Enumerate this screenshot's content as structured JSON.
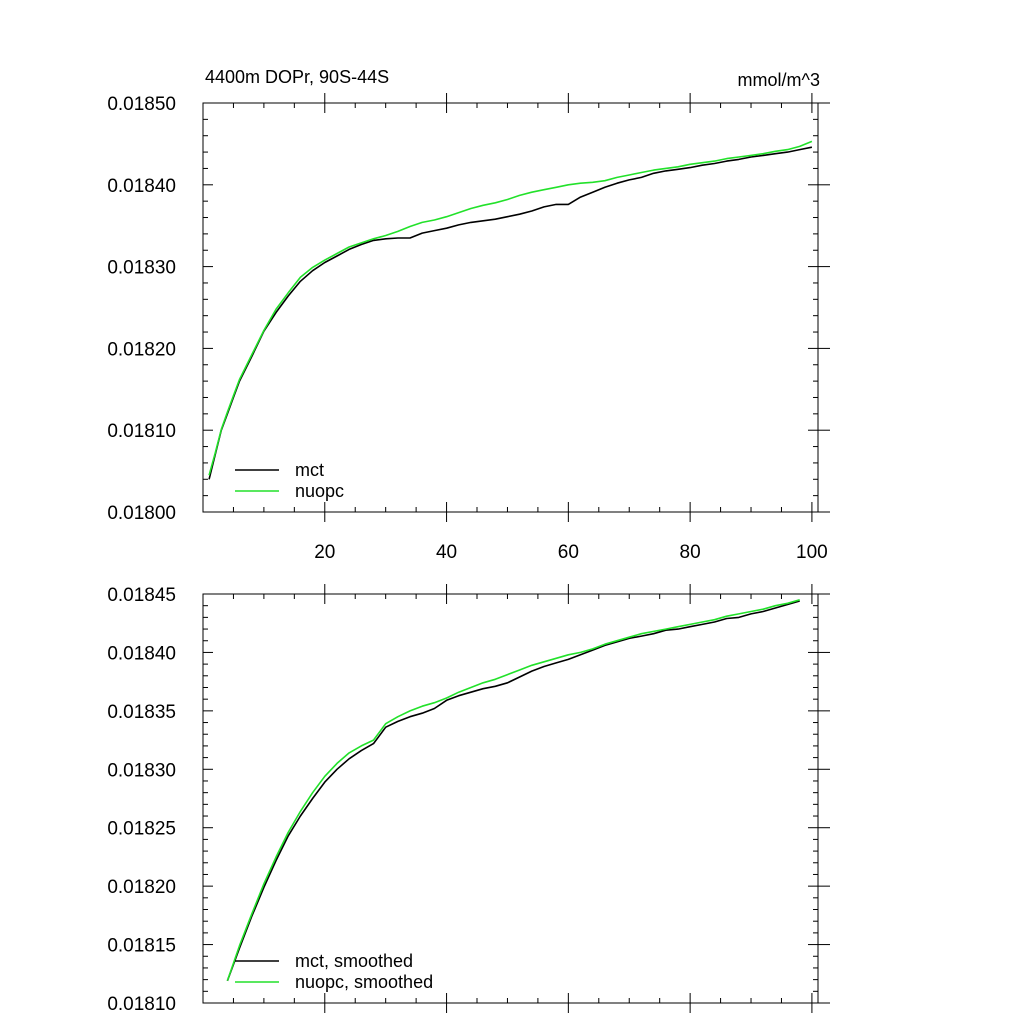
{
  "figure": {
    "title_left": "4400m DOPr, 90S-44S",
    "title_right": "mmol/m^3"
  },
  "chart_data": [
    {
      "type": "line",
      "xlim": [
        0,
        101
      ],
      "ylim": [
        0.018,
        0.0185
      ],
      "x_ticks": [
        20,
        40,
        60,
        80,
        100
      ],
      "x_tick_labels": [
        "20",
        "40",
        "60",
        "80",
        "100"
      ],
      "y_ticks": [
        0.018,
        0.0181,
        0.0182,
        0.0183,
        0.0184,
        0.0185
      ],
      "y_tick_labels": [
        "0.01800",
        "0.01810",
        "0.01820",
        "0.01830",
        "0.01840",
        "0.01850"
      ],
      "legend": {
        "position": "bottom-left",
        "entries": [
          "mct",
          "nuopc"
        ]
      },
      "series": [
        {
          "name": "mct",
          "color": "#000000",
          "x": [
            1,
            2,
            3,
            4,
            5,
            6,
            8,
            10,
            12,
            14,
            16,
            18,
            20,
            22,
            24,
            26,
            28,
            30,
            32,
            34,
            36,
            38,
            40,
            42,
            44,
            46,
            48,
            50,
            52,
            54,
            56,
            58,
            60,
            62,
            64,
            66,
            68,
            70,
            72,
            74,
            76,
            78,
            80,
            82,
            84,
            86,
            88,
            90,
            92,
            94,
            96,
            98,
            100
          ],
          "y": [
            0.01804,
            0.01807,
            0.0181,
            0.01812,
            0.01814,
            0.01816,
            0.01819,
            0.018221,
            0.018244,
            0.018264,
            0.018282,
            0.018295,
            0.018305,
            0.018313,
            0.018321,
            0.018327,
            0.018332,
            0.018334,
            0.018335,
            0.018335,
            0.018341,
            0.018344,
            0.018347,
            0.018351,
            0.018354,
            0.018356,
            0.018358,
            0.018361,
            0.018364,
            0.018368,
            0.018373,
            0.018376,
            0.018376,
            0.018385,
            0.018391,
            0.018397,
            0.018402,
            0.018406,
            0.018409,
            0.018414,
            0.018417,
            0.018419,
            0.018421,
            0.018424,
            0.018426,
            0.018429,
            0.018431,
            0.018434,
            0.018436,
            0.018438,
            0.01844,
            0.018443,
            0.018446
          ]
        },
        {
          "name": "nuopc",
          "color": "#22e12a",
          "x": [
            1,
            2,
            3,
            4,
            5,
            6,
            8,
            10,
            12,
            14,
            16,
            18,
            20,
            22,
            24,
            26,
            28,
            30,
            32,
            34,
            36,
            38,
            40,
            42,
            44,
            46,
            48,
            50,
            52,
            54,
            56,
            58,
            60,
            62,
            64,
            66,
            68,
            70,
            72,
            74,
            76,
            78,
            80,
            82,
            84,
            86,
            88,
            90,
            92,
            94,
            96,
            98,
            100
          ],
          "y": [
            0.018045,
            0.018072,
            0.018101,
            0.018122,
            0.018142,
            0.018162,
            0.018192,
            0.018222,
            0.018248,
            0.018268,
            0.018287,
            0.018299,
            0.018308,
            0.018316,
            0.018324,
            0.018329,
            0.018334,
            0.018338,
            0.018343,
            0.018349,
            0.018354,
            0.018357,
            0.018361,
            0.018366,
            0.018371,
            0.018375,
            0.018378,
            0.018382,
            0.018387,
            0.018391,
            0.018394,
            0.018397,
            0.0184,
            0.018402,
            0.018403,
            0.018405,
            0.018409,
            0.018412,
            0.018415,
            0.018418,
            0.01842,
            0.018422,
            0.018425,
            0.018427,
            0.018429,
            0.018432,
            0.018434,
            0.018436,
            0.018438,
            0.018441,
            0.018443,
            0.018447,
            0.018453
          ]
        }
      ]
    },
    {
      "type": "line",
      "xlim": [
        0,
        101
      ],
      "ylim": [
        0.0181,
        0.01845
      ],
      "x_ticks": [
        20,
        40,
        60,
        80,
        100
      ],
      "x_tick_labels": [],
      "y_ticks": [
        0.0181,
        0.01815,
        0.0182,
        0.01825,
        0.0183,
        0.01835,
        0.0184,
        0.01845
      ],
      "y_tick_labels": [
        "0.01810",
        "0.01815",
        "0.01820",
        "0.01825",
        "0.01830",
        "0.01835",
        "0.01840",
        "0.01845"
      ],
      "legend": {
        "position": "bottom-left",
        "entries": [
          "mct, smoothed",
          "nuopc, smoothed"
        ]
      },
      "series": [
        {
          "name": "mct, smoothed",
          "color": "#000000",
          "x": [
            4,
            6,
            8,
            10,
            12,
            14,
            16,
            18,
            20,
            22,
            24,
            26,
            28,
            30,
            32,
            34,
            36,
            38,
            40,
            42,
            44,
            46,
            48,
            50,
            52,
            54,
            56,
            58,
            60,
            62,
            64,
            66,
            68,
            70,
            72,
            74,
            76,
            78,
            80,
            82,
            84,
            86,
            88,
            90,
            92,
            94,
            96,
            98
          ],
          "y": [
            0.018119,
            0.018147,
            0.018174,
            0.018199,
            0.018222,
            0.018243,
            0.01826,
            0.018275,
            0.018289,
            0.0183,
            0.018309,
            0.018316,
            0.018322,
            0.018336,
            0.018341,
            0.018345,
            0.018348,
            0.018352,
            0.018359,
            0.018363,
            0.018366,
            0.018369,
            0.018371,
            0.018374,
            0.018379,
            0.018384,
            0.018388,
            0.018391,
            0.018394,
            0.018398,
            0.018402,
            0.018406,
            0.018409,
            0.018412,
            0.018414,
            0.018416,
            0.018419,
            0.01842,
            0.018422,
            0.018424,
            0.018426,
            0.018429,
            0.01843,
            0.018433,
            0.018435,
            0.018438,
            0.018441,
            0.018444
          ]
        },
        {
          "name": "nuopc, smoothed",
          "color": "#22e12a",
          "x": [
            4,
            6,
            8,
            10,
            12,
            14,
            16,
            18,
            20,
            22,
            24,
            26,
            28,
            30,
            32,
            34,
            36,
            38,
            40,
            42,
            44,
            46,
            48,
            50,
            52,
            54,
            56,
            58,
            60,
            62,
            64,
            66,
            68,
            70,
            72,
            74,
            76,
            78,
            80,
            82,
            84,
            86,
            88,
            90,
            92,
            94,
            96,
            98
          ],
          "y": [
            0.018119,
            0.018149,
            0.018176,
            0.018202,
            0.018225,
            0.018246,
            0.018264,
            0.01828,
            0.018294,
            0.018305,
            0.018314,
            0.01832,
            0.018325,
            0.018339,
            0.018345,
            0.01835,
            0.018354,
            0.018357,
            0.018361,
            0.018366,
            0.01837,
            0.018374,
            0.018377,
            0.018381,
            0.018385,
            0.018389,
            0.018392,
            0.018395,
            0.018398,
            0.0184,
            0.018403,
            0.018407,
            0.01841,
            0.018413,
            0.018416,
            0.018418,
            0.01842,
            0.018422,
            0.018424,
            0.018426,
            0.018428,
            0.018431,
            0.018433,
            0.018435,
            0.018437,
            0.01844,
            0.018442,
            0.018445
          ]
        }
      ]
    }
  ]
}
